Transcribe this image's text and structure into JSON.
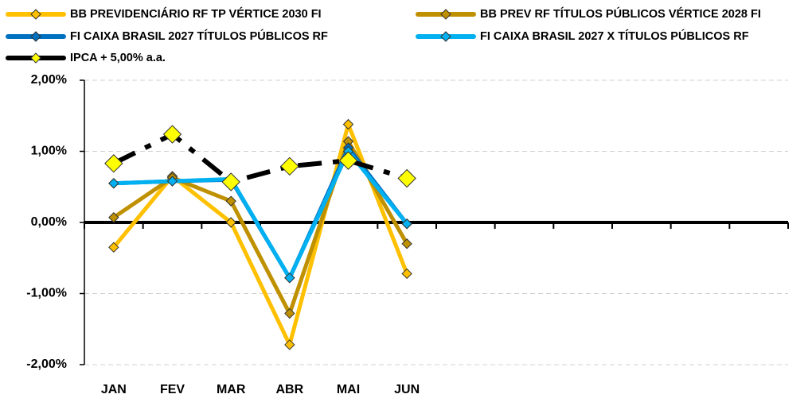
{
  "chart_data": {
    "type": "line",
    "categories": [
      "JAN",
      "FEV",
      "MAR",
      "ABR",
      "MAI",
      "JUN",
      null,
      null,
      null,
      null,
      null,
      null
    ],
    "series": [
      {
        "name": "BB PREVIDENCIÁRIO RF TP VÉRTICE 2030 FI",
        "color": "#ffc000",
        "values": [
          -0.35,
          0.65,
          0.0,
          -1.72,
          1.38,
          -0.72,
          null,
          null,
          null,
          null,
          null,
          null
        ]
      },
      {
        "name": "BB PREV RF TÍTULOS PÚBLICOS VÉRTICE 2028 FI",
        "color": "#bf9000",
        "values": [
          0.07,
          0.63,
          0.3,
          -1.28,
          1.14,
          -0.3,
          null,
          null,
          null,
          null,
          null,
          null
        ]
      },
      {
        "name": "FI CAIXA BRASIL 2027 TÍTULOS PÚBLICOS RF",
        "color": "#0070c0",
        "values": [
          0.55,
          0.58,
          0.6,
          -0.78,
          1.05,
          -0.02,
          null,
          null,
          null,
          null,
          null,
          null
        ]
      },
      {
        "name": "FI CAIXA BRASIL 2027 X TÍTULOS PÚBLICOS RF",
        "color": "#00b0f0",
        "values": [
          0.55,
          0.58,
          0.61,
          -0.78,
          1.0,
          -0.02,
          null,
          null,
          null,
          null,
          null,
          null
        ]
      },
      {
        "name": "IPCA + 5,00% a.a.",
        "color": "#000000",
        "marker_color": "#ffff00",
        "values": [
          0.83,
          1.24,
          0.57,
          0.79,
          0.87,
          0.62,
          null,
          null,
          null,
          null,
          null,
          null
        ]
      }
    ],
    "ylim": [
      -2,
      2
    ],
    "yticks": [
      {
        "value": -2,
        "label": "-2,00%"
      },
      {
        "value": -1,
        "label": "-1,00%"
      },
      {
        "value": 0,
        "label": "0,00%"
      },
      {
        "value": 1,
        "label": "1,00%"
      },
      {
        "value": 2,
        "label": "2,00%"
      }
    ],
    "grid": true,
    "legend": "top"
  }
}
